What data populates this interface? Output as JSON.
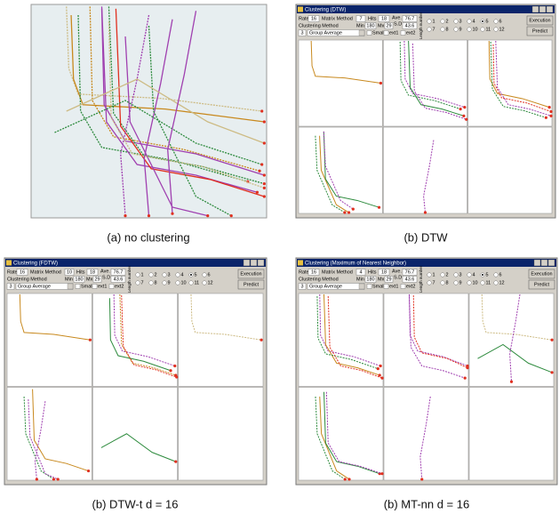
{
  "panels": [
    {
      "caption": "(a) no clustering"
    },
    {
      "caption": "(b) DTW",
      "window": {
        "title": "Clustering (DTW)",
        "rate_label": "Rate",
        "rate": "16",
        "matrix_label": "Matrix Method",
        "matrix": "7",
        "hits_label": "Hits",
        "hits": "18",
        "ave_label": "Ave.",
        "ave": "76.7",
        "method_label": "Clustering Method",
        "min_label": "Min",
        "min": "180",
        "max_label": "Mx",
        "max": "29",
        "sd_label": "S.D",
        "sd": "43.6",
        "clusters": "3",
        "method": "Group Average",
        "checks": [
          "Smaller",
          "ext1",
          "ext2"
        ],
        "length_label": "Length number",
        "radios": [
          "1",
          "2",
          "3",
          "4",
          "5",
          "6",
          "7",
          "8",
          "9",
          "10",
          "11",
          "12"
        ],
        "buttons": [
          "Execution",
          "Predict"
        ]
      }
    },
    {
      "caption": "(b) DTW-t d = 16",
      "window": {
        "title": "Clustering (FDTW)",
        "rate_label": "Rate",
        "rate": "16",
        "matrix_label": "Matrix Method",
        "matrix": "10",
        "hits_label": "Hits",
        "hits": "18",
        "ave_label": "Ave.",
        "ave": "76.7",
        "method_label": "Clustering Method",
        "min_label": "Min",
        "min": "180",
        "max_label": "Mx",
        "max": "29",
        "sd_label": "S.D",
        "sd": "43.6",
        "clusters": "3",
        "method": "Group Average",
        "checks": [
          "Smaller",
          "ext1",
          "ext2"
        ],
        "length_label": "Length number",
        "radios": [
          "1",
          "2",
          "3",
          "4",
          "5",
          "6",
          "7",
          "8",
          "9",
          "10",
          "11",
          "12"
        ],
        "buttons": [
          "Execution",
          "Predict"
        ]
      }
    },
    {
      "caption": "(b) MT-nn d = 16",
      "window": {
        "title": "Clustering (Maximum of Nearest Neighbor)",
        "rate_label": "Rate",
        "rate": "16",
        "matrix_label": "Matrix Method",
        "matrix": "4",
        "hits_label": "Hits",
        "hits": "18",
        "ave_label": "Ave.",
        "ave": "76.7",
        "method_label": "Clustering Method",
        "min_label": "Min",
        "min": "180",
        "max_label": "Mx",
        "max": "29",
        "sd_label": "S.D",
        "sd": "43.6",
        "clusters": "3",
        "method": "Group Average",
        "checks": [
          "Smaller",
          "ext1",
          "ext2"
        ],
        "length_label": "Length number",
        "radios": [
          "1",
          "2",
          "3",
          "4",
          "5",
          "6",
          "7",
          "8",
          "9",
          "10",
          "11",
          "12"
        ],
        "buttons": [
          "Execution",
          "Predict"
        ]
      }
    }
  ]
}
